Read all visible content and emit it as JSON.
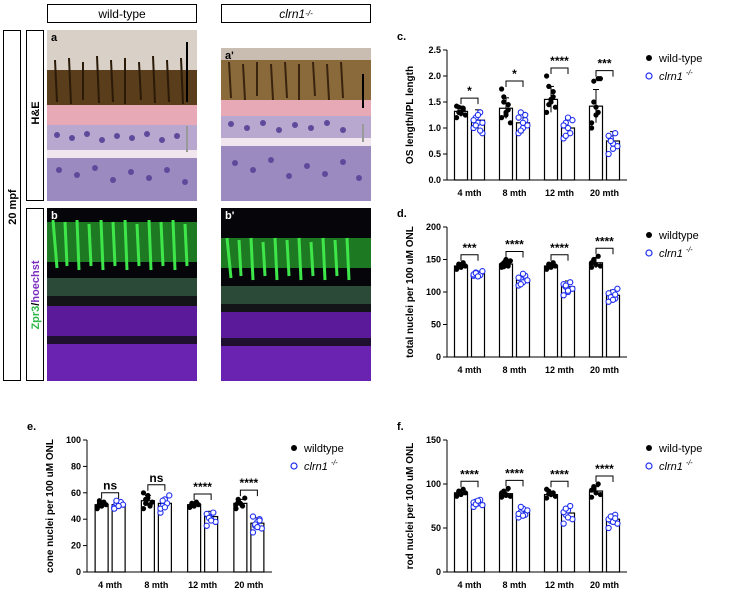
{
  "headers": {
    "wildtype": "wild-type",
    "mutant": "clrn1",
    "mutant_sup": "-/-"
  },
  "side": {
    "age": "20 mpf",
    "stain_he": "H&E",
    "stain_zpr3": "Zpr3",
    "stain_sep": "/",
    "stain_hoechst": "hoechst"
  },
  "image_labels": {
    "a": "a",
    "a_prime": "a'",
    "b": "b",
    "b_prime": "b'"
  },
  "colors": {
    "wildtype": "#000000",
    "mutant": "#1f2ef0",
    "zpr3": "#2ecc40",
    "hoechst": "#7b2fbf"
  },
  "chart_data": [
    {
      "panel": "c.",
      "type": "bar",
      "categories": [
        "4 mth",
        "8 mth",
        "12 mth",
        "20 mth"
      ],
      "ylabel": "OS length/IPL length",
      "ylim": [
        0,
        2.5
      ],
      "yticks": [
        0,
        0.5,
        1.0,
        1.5,
        2.0,
        2.5
      ],
      "ytick_labels": [
        "0.0",
        "0.5",
        "1.0",
        "1.5",
        "2.0",
        "2.5"
      ],
      "series": [
        {
          "name": "wild-type",
          "values": [
            1.32,
            1.38,
            1.55,
            1.42
          ],
          "err": [
            0.1,
            0.2,
            0.25,
            0.32
          ]
        },
        {
          "name": "clrn1",
          "values": [
            1.15,
            1.1,
            1.0,
            0.75
          ],
          "err": [
            0.2,
            0.2,
            0.17,
            0.18
          ]
        }
      ],
      "points": [
        [
          [
            1.2,
            1.4,
            1.3,
            1.35,
            1.25,
            1.42,
            1.3,
            1.28,
            1.38
          ],
          [
            1.0,
            1.2,
            1.1,
            1.3,
            0.9,
            1.15,
            1.05,
            1.25,
            0.95,
            1.1
          ]
        ],
        [
          [
            1.2,
            1.6,
            1.3,
            1.45,
            1.1,
            1.75,
            1.5,
            1.25,
            1.35
          ],
          [
            0.9,
            1.3,
            1.0,
            1.15,
            1.05,
            1.2,
            0.95,
            1.1,
            1.25
          ]
        ],
        [
          [
            1.3,
            1.8,
            1.5,
            1.6,
            1.4,
            2.0,
            1.45,
            1.55,
            1.7
          ],
          [
            0.8,
            1.1,
            1.0,
            0.9,
            1.15,
            1.05,
            0.85,
            1.2
          ]
        ],
        [
          [
            1.0,
            1.9,
            1.4,
            1.3,
            1.95,
            1.1,
            1.5,
            1.25,
            1.95
          ],
          [
            0.5,
            0.8,
            0.7,
            0.9,
            0.65,
            0.85,
            0.75,
            0.6
          ]
        ]
      ],
      "significance": [
        "*",
        "*",
        "****",
        "***"
      ],
      "legend": [
        "wild-type",
        "clrn1"
      ],
      "legend_sup": "-/-"
    },
    {
      "panel": "d.",
      "type": "bar",
      "categories": [
        "4 mth",
        "8 mth",
        "12 mth",
        "20 mth"
      ],
      "ylabel": "total nuclei per 100 uM ONL",
      "ylim": [
        0,
        200
      ],
      "yticks": [
        0,
        50,
        100,
        150,
        200
      ],
      "ytick_labels": [
        "0",
        "50",
        "100",
        "150",
        "200"
      ],
      "series": [
        {
          "name": "wildtype",
          "values": [
            140,
            143,
            140,
            145
          ],
          "err": [
            5,
            6,
            5,
            8
          ]
        },
        {
          "name": "clrn1",
          "values": [
            128,
            118,
            108,
            95
          ],
          "err": [
            4,
            8,
            9,
            8
          ]
        }
      ],
      "points": [
        [
          [
            135,
            142,
            138,
            145,
            140,
            137,
            143,
            139
          ],
          [
            125,
            130,
            128,
            126,
            132,
            127,
            129,
            124
          ]
        ],
        [
          [
            138,
            145,
            150,
            140,
            148,
            142,
            139,
            146,
            144
          ],
          [
            110,
            120,
            115,
            125,
            118,
            122,
            112,
            128
          ]
        ],
        [
          [
            135,
            142,
            138,
            145,
            140,
            137,
            143,
            139
          ],
          [
            95,
            108,
            100,
            115,
            105,
            112,
            110,
            102
          ]
        ],
        [
          [
            138,
            150,
            142,
            155,
            140,
            145,
            148
          ],
          [
            85,
            95,
            100,
            90,
            105,
            98,
            92,
            88,
            96
          ]
        ]
      ],
      "significance": [
        "***",
        "****",
        "****",
        "****"
      ],
      "legend": [
        "wildtype",
        "clrn1"
      ],
      "legend_sup": "-/-"
    },
    {
      "panel": "e.",
      "type": "bar",
      "categories": [
        "4 mth",
        "8 mth",
        "12 mth",
        "20 mth"
      ],
      "ylabel": "cone nuclei per 100 uM ONL",
      "ylim": [
        0,
        100
      ],
      "yticks": [
        0,
        20,
        40,
        60,
        80,
        100
      ],
      "ytick_labels": [
        "0",
        "20",
        "40",
        "60",
        "80",
        "100"
      ],
      "series": [
        {
          "name": "wildtype",
          "values": [
            51,
            54,
            51,
            52
          ],
          "err": [
            2,
            4,
            2,
            3
          ]
        },
        {
          "name": "clrn1",
          "values": [
            51,
            52,
            42,
            37
          ],
          "err": [
            2,
            4,
            4,
            4
          ]
        }
      ],
      "points": [
        [
          [
            48,
            52,
            50,
            53,
            51,
            49,
            54,
            50
          ],
          [
            49,
            52,
            50,
            53,
            51,
            48,
            54,
            50
          ]
        ],
        [
          [
            48,
            55,
            58,
            50,
            53,
            60,
            52,
            56,
            51
          ],
          [
            45,
            50,
            55,
            52,
            58,
            48,
            54,
            49
          ]
        ],
        [
          [
            49,
            52,
            50,
            53,
            51,
            49,
            52,
            50
          ],
          [
            35,
            42,
            40,
            45,
            38,
            44,
            41,
            39
          ]
        ],
        [
          [
            48,
            55,
            52,
            50,
            56,
            51,
            53
          ],
          [
            30,
            35,
            38,
            40,
            33,
            42,
            36,
            34,
            39
          ]
        ]
      ],
      "significance": [
        "ns",
        "ns",
        "****",
        "****"
      ],
      "legend": [
        "wildtype",
        "clrn1"
      ],
      "legend_sup": "-/-"
    },
    {
      "panel": "f.",
      "type": "bar",
      "categories": [
        "4 mth",
        "8 mth",
        "12 mth",
        "20 mth"
      ],
      "ylabel": "rod nuclei per 100 uM ONL",
      "ylim": [
        0,
        150
      ],
      "yticks": [
        0,
        50,
        100,
        150
      ],
      "ytick_labels": [
        "0",
        "50",
        "100",
        "150"
      ],
      "series": [
        {
          "name": "wild-type",
          "values": [
            90,
            89,
            88,
            92
          ],
          "err": [
            3,
            3,
            3,
            5
          ]
        },
        {
          "name": "clrn1",
          "values": [
            78,
            68,
            67,
            60
          ],
          "err": [
            3,
            4,
            7,
            6
          ]
        }
      ],
      "points": [
        [
          [
            86,
            92,
            88,
            94,
            90,
            87,
            91,
            89
          ],
          [
            74,
            80,
            78,
            82,
            76,
            79,
            77,
            81
          ]
        ],
        [
          [
            85,
            92,
            88,
            95,
            86,
            90,
            89,
            87
          ],
          [
            62,
            68,
            72,
            65,
            70,
            66,
            74,
            64
          ]
        ],
        [
          [
            84,
            92,
            88,
            90,
            86,
            94,
            89
          ],
          [
            55,
            65,
            70,
            75,
            60,
            68,
            72,
            62
          ]
        ],
        [
          [
            85,
            95,
            90,
            100,
            88,
            93,
            97
          ],
          [
            50,
            58,
            62,
            65,
            55,
            60,
            63,
            57,
            61
          ]
        ]
      ],
      "significance": [
        "****",
        "****",
        "****",
        "****"
      ],
      "legend": [
        "wild-type",
        "clrn1"
      ],
      "legend_sup": "-/-"
    }
  ]
}
